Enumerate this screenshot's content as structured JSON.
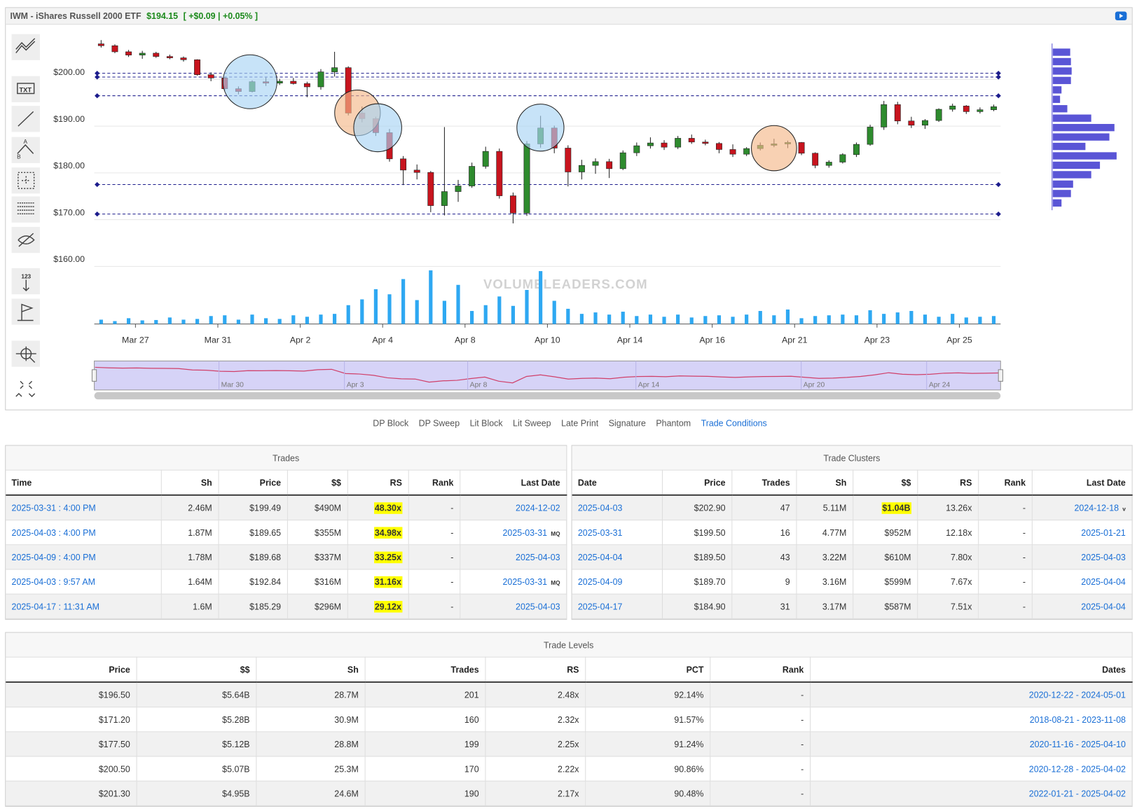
{
  "header": {
    "title": "IWM - iShares Russell 2000 ETF",
    "price": "$194.15",
    "change": "[ +$0.09 | +0.05% ]"
  },
  "toolbar": {
    "txt": "TXT",
    "a": "A",
    "b": "B",
    "num": "123"
  },
  "chart": {
    "type": "candlestick",
    "xlim": [
      0,
      22
    ],
    "ylim": [
      160,
      210
    ],
    "vlim": [
      0,
      16
    ],
    "yticks": [
      {
        "value": 200,
        "label": "$200.00"
      },
      {
        "value": 190,
        "label": "$190.00"
      },
      {
        "value": 180,
        "label": "$180.00"
      },
      {
        "value": 170,
        "label": "$170.00"
      },
      {
        "value": 160,
        "label": "$160.00"
      }
    ],
    "grid": true,
    "grid_color": "#e6e6e6",
    "up_color": "#2e8b2e",
    "down_color": "#c8141e",
    "volume_color": "#2ea8f2",
    "level_color": "#1c1c8c",
    "profile_color": "#5a55d6",
    "navigator_color": "#d0406a",
    "days": [
      null,
      "Mar 27",
      null,
      "Mar 31",
      null,
      "Apr 2",
      null,
      "Apr 4",
      null,
      "Apr 8",
      null,
      "Apr 10",
      null,
      "Apr 14",
      null,
      "Apr 16",
      null,
      "Apr 21",
      null,
      "Apr 23",
      null,
      "Apr 25"
    ],
    "candles": [
      [
        [
          207.6,
          208.4,
          206.8,
          207.2
        ],
        [
          207.2,
          207.5,
          205.6,
          205.9
        ],
        [
          205.9,
          206.3,
          204.8,
          205.2
        ]
      ],
      [
        [
          205.2,
          206.1,
          204.4,
          205.6
        ],
        [
          205.6,
          205.9,
          204.6,
          204.9
        ],
        [
          204.9,
          205.3,
          204.3,
          204.6
        ]
      ],
      [
        [
          204.6,
          204.9,
          203.8,
          204.2
        ],
        [
          204.2,
          204.3,
          200.8,
          201.0
        ],
        [
          201.0,
          201.5,
          199.6,
          200.3
        ]
      ],
      [
        [
          200.3,
          200.5,
          197.6,
          198.0
        ],
        [
          198.0,
          198.5,
          196.8,
          197.4
        ],
        [
          197.4,
          199.8,
          197.2,
          199.5
        ]
      ],
      [
        [
          199.5,
          200.4,
          198.6,
          199.2
        ],
        [
          199.2,
          200.1,
          198.8,
          199.6
        ],
        [
          199.6,
          200.3,
          198.9,
          199.1
        ]
      ],
      [
        [
          199.1,
          199.5,
          196.2,
          198.4
        ],
        [
          198.4,
          202.2,
          197.8,
          201.6
        ],
        [
          201.6,
          205.9,
          200.6,
          202.5
        ]
      ],
      [
        [
          202.5,
          202.8,
          192.3,
          192.8
        ],
        [
          192.8,
          194.2,
          190.8,
          191.6
        ],
        [
          191.6,
          192.0,
          187.9,
          188.6
        ]
      ],
      [
        [
          188.6,
          189.4,
          182.4,
          183.0
        ],
        [
          183.0,
          183.6,
          177.4,
          180.6
        ],
        [
          180.6,
          181.8,
          178.6,
          180.1
        ]
      ],
      [
        [
          180.1,
          180.4,
          171.6,
          173.0
        ],
        [
          173.0,
          189.8,
          170.9,
          176.0
        ],
        [
          176.0,
          178.5,
          173.8,
          177.2
        ]
      ],
      [
        [
          177.2,
          182.2,
          176.8,
          181.4
        ],
        [
          181.4,
          185.6,
          180.9,
          184.6
        ],
        [
          184.6,
          185.2,
          174.5,
          175.1
        ]
      ],
      [
        [
          175.1,
          175.8,
          169.2,
          171.4
        ],
        [
          171.4,
          186.8,
          170.8,
          186.2
        ],
        [
          186.2,
          192.2,
          185.4,
          189.6
        ]
      ],
      [
        [
          189.6,
          190.1,
          184.2,
          185.3
        ],
        [
          185.3,
          185.9,
          177.1,
          180.2
        ],
        [
          180.2,
          182.8,
          178.6,
          181.6
        ]
      ],
      [
        [
          181.6,
          183.1,
          179.8,
          182.4
        ],
        [
          182.4,
          183.0,
          178.9,
          180.9
        ],
        [
          180.9,
          184.8,
          180.6,
          184.3
        ]
      ],
      [
        [
          184.3,
          186.5,
          183.6,
          185.8
        ],
        [
          185.8,
          187.6,
          185.2,
          186.4
        ],
        [
          186.4,
          187.0,
          184.9,
          185.5
        ]
      ],
      [
        [
          185.5,
          187.9,
          185.1,
          187.4
        ],
        [
          187.4,
          188.2,
          186.2,
          186.6
        ],
        [
          186.6,
          187.1,
          185.9,
          186.3
        ]
      ],
      [
        [
          186.3,
          186.6,
          184.2,
          185.0
        ],
        [
          185.0,
          186.1,
          183.4,
          184.0
        ],
        [
          184.0,
          185.5,
          183.6,
          185.2
        ]
      ],
      [
        [
          185.2,
          186.5,
          184.8,
          185.9
        ],
        [
          185.9,
          187.3,
          185.5,
          186.2
        ],
        [
          186.2,
          186.9,
          185.3,
          186.5
        ]
      ],
      [
        [
          186.5,
          186.6,
          183.8,
          184.2
        ],
        [
          184.2,
          184.4,
          181.0,
          181.6
        ],
        [
          181.6,
          182.7,
          181.1,
          182.3
        ]
      ],
      [
        [
          182.3,
          184.2,
          182.0,
          183.9
        ],
        [
          183.9,
          186.5,
          183.4,
          186.1
        ],
        [
          186.1,
          190.3,
          185.8,
          189.8
        ]
      ],
      [
        [
          189.8,
          195.4,
          189.2,
          194.6
        ],
        [
          194.6,
          195.2,
          190.4,
          191.1
        ],
        [
          191.1,
          192.0,
          189.6,
          190.2
        ]
      ],
      [
        [
          190.2,
          191.5,
          189.4,
          191.2
        ],
        [
          191.2,
          193.8,
          190.9,
          193.6
        ],
        [
          193.6,
          194.8,
          193.1,
          194.3
        ]
      ],
      [
        [
          194.3,
          194.5,
          192.6,
          193.1
        ],
        [
          193.1,
          194.0,
          192.7,
          193.5
        ],
        [
          193.5,
          194.6,
          193.2,
          194.15
        ]
      ]
    ],
    "volumes": [
      [
        1.2,
        0.8,
        1.6
      ],
      [
        1.0,
        1.1,
        1.8
      ],
      [
        1.2,
        1.4,
        2.2
      ],
      [
        2.4,
        1.2,
        2.6
      ],
      [
        1.6,
        1.4,
        2.4
      ],
      [
        2.0,
        2.6,
        2.8
      ],
      [
        5.2,
        6.8,
        9.6
      ],
      [
        8.2,
        12.4,
        6.6
      ],
      [
        14.8,
        6.4,
        10.8
      ],
      [
        3.6,
        5.2,
        7.6
      ],
      [
        5.0,
        9.4,
        14.6
      ],
      [
        6.4,
        4.2,
        2.8
      ],
      [
        3.2,
        2.6,
        3.4
      ],
      [
        2.2,
        2.6,
        2.0
      ],
      [
        2.6,
        1.8,
        2.2
      ],
      [
        2.4,
        2.0,
        2.6
      ],
      [
        3.6,
        2.4,
        4.0
      ],
      [
        1.6,
        2.2,
        2.4
      ],
      [
        2.6,
        2.4,
        3.8
      ],
      [
        2.8,
        3.2,
        3.6
      ],
      [
        2.6,
        2.0,
        2.8
      ],
      [
        1.8,
        2.0,
        2.2
      ]
    ],
    "levels": [
      201.3,
      200.5,
      196.5,
      177.5,
      171.2
    ],
    "bubbles": [
      {
        "day": 3.78,
        "price": 199.49,
        "size": 2.46,
        "color": "#a9d4f5"
      },
      {
        "day": 6.39,
        "price": 192.84,
        "size": 1.64,
        "color": "#f5b98a"
      },
      {
        "day": 6.88,
        "price": 189.65,
        "size": 1.87,
        "color": "#a9d4f5"
      },
      {
        "day": 10.83,
        "price": 189.68,
        "size": 1.78,
        "color": "#a9d4f5"
      },
      {
        "day": 16.5,
        "price": 185.29,
        "size": 1.6,
        "color": "#f5b98a"
      }
    ],
    "volume_profile": [
      24,
      25,
      26,
      25,
      12,
      10,
      20,
      53,
      85,
      78,
      45,
      88,
      65,
      53,
      28,
      25,
      12
    ],
    "watermark": "VOLUMELEADERS.COM",
    "navigator_labels": [
      "Mar 30",
      "Apr 3",
      "Apr 8",
      "Apr 14",
      "Apr 20",
      "Apr 24"
    ]
  },
  "legend": [
    "DP Block",
    "DP Sweep",
    "Lit Block",
    "Lit Sweep",
    "Late Print",
    "Signature",
    "Phantom",
    "Trade Conditions"
  ],
  "trades": {
    "title": "Trades",
    "columns": [
      "Time",
      "Sh",
      "Price",
      "$$",
      "RS",
      "Rank",
      "Last Date"
    ],
    "rows": [
      [
        "2025-03-31 : 4:00 PM",
        "2.46M",
        "$199.49",
        "$490M",
        "48.30x",
        "-",
        "2024-12-02"
      ],
      [
        "2025-04-03 : 4:00 PM",
        "1.87M",
        "$189.65",
        "$355M",
        "34.98x",
        "-",
        "2025-03-31"
      ],
      [
        "2025-04-09 : 4:00 PM",
        "1.78M",
        "$189.68",
        "$337M",
        "33.25x",
        "-",
        "2025-04-03"
      ],
      [
        "2025-04-03 : 9:57 AM",
        "1.64M",
        "$192.84",
        "$316M",
        "31.16x",
        "-",
        "2025-03-31"
      ],
      [
        "2025-04-17 : 11:31 AM",
        "1.6M",
        "$185.29",
        "$296M",
        "29.12x",
        "-",
        "2025-04-03"
      ]
    ],
    "tags": [
      null,
      "MQ",
      null,
      "MQ",
      null
    ]
  },
  "clusters": {
    "title": "Trade Clusters",
    "columns": [
      "Date",
      "Price",
      "Trades",
      "Sh",
      "$$",
      "RS",
      "Rank",
      "Last Date"
    ],
    "rows": [
      [
        "2025-04-03",
        "$202.90",
        "47",
        "5.11M",
        "$1.04B",
        "13.26x",
        "-",
        "2024-12-18"
      ],
      [
        "2025-03-31",
        "$199.50",
        "16",
        "4.77M",
        "$952M",
        "12.18x",
        "-",
        "2025-01-21"
      ],
      [
        "2025-04-04",
        "$189.50",
        "43",
        "3.22M",
        "$610M",
        "7.80x",
        "-",
        "2025-04-03"
      ],
      [
        "2025-04-09",
        "$189.70",
        "9",
        "3.16M",
        "$599M",
        "7.67x",
        "-",
        "2025-04-04"
      ],
      [
        "2025-04-17",
        "$184.90",
        "31",
        "3.17M",
        "$587M",
        "7.51x",
        "-",
        "2025-04-04"
      ]
    ],
    "tags": [
      "v",
      null,
      null,
      null,
      null
    ]
  },
  "levels": {
    "title": "Trade Levels",
    "columns": [
      "Price",
      "$$",
      "Sh",
      "Trades",
      "RS",
      "PCT",
      "Rank",
      "Dates"
    ],
    "rows": [
      [
        "$196.50",
        "$5.64B",
        "28.7M",
        "201",
        "2.48x",
        "92.14%",
        "-",
        "2020-12-22 - 2024-05-01"
      ],
      [
        "$171.20",
        "$5.28B",
        "30.9M",
        "160",
        "2.32x",
        "91.57%",
        "-",
        "2018-08-21 - 2023-11-08"
      ],
      [
        "$177.50",
        "$5.12B",
        "28.8M",
        "199",
        "2.25x",
        "91.24%",
        "-",
        "2020-11-16 - 2025-04-10"
      ],
      [
        "$200.50",
        "$5.07B",
        "25.3M",
        "170",
        "2.22x",
        "90.86%",
        "-",
        "2020-12-28 - 2025-04-02"
      ],
      [
        "$201.30",
        "$4.95B",
        "24.6M",
        "190",
        "2.17x",
        "90.48%",
        "-",
        "2022-01-21 - 2025-04-02"
      ]
    ]
  }
}
